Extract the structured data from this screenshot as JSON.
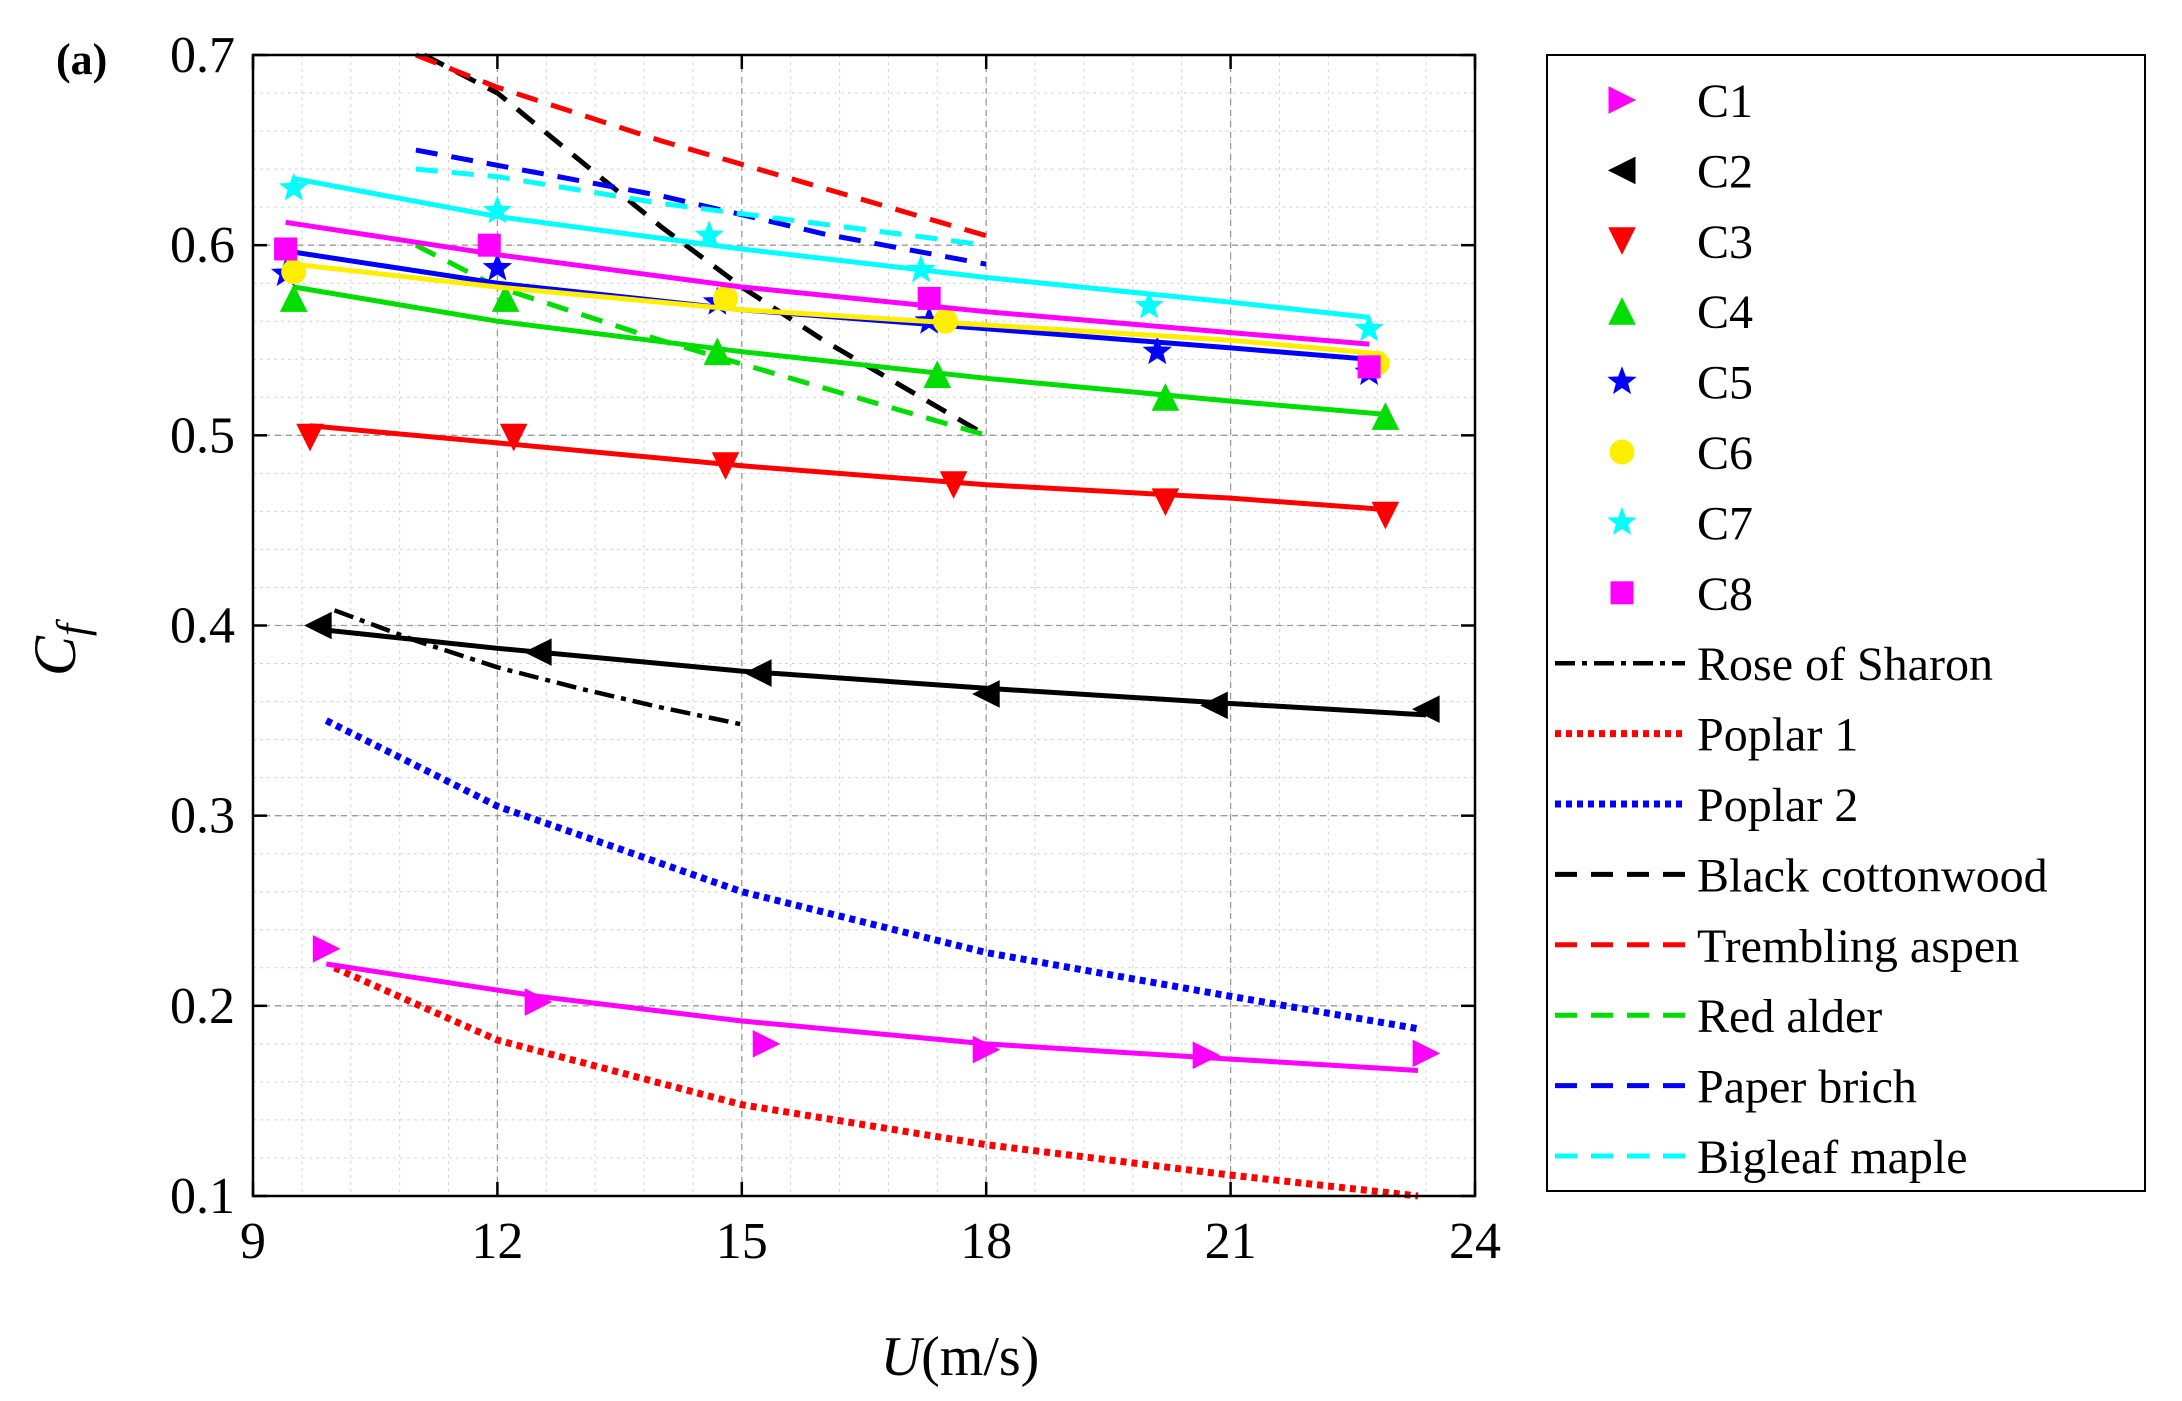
{
  "chart_data": {
    "type": "line",
    "panel_label": "(a)",
    "xlabel_italic": "U",
    "xlabel_unit": "(m/s)",
    "ylabel_main": "C",
    "ylabel_sub": "f",
    "xlim": [
      9,
      24
    ],
    "ylim": [
      0.1,
      0.7
    ],
    "xticks": [
      9,
      12,
      15,
      18,
      21,
      24
    ],
    "yticks": [
      0.1,
      0.2,
      0.3,
      0.4,
      0.5,
      0.6,
      0.7
    ],
    "xtick_labels": [
      "9",
      "12",
      "15",
      "18",
      "21",
      "24"
    ],
    "ytick_labels": [
      "0.1",
      "0.2",
      "0.3",
      "0.4",
      "0.5",
      "0.6",
      "0.7"
    ],
    "grid": true,
    "minor_grid": true,
    "legend_position": "outside-right",
    "series": [
      {
        "name": "C1",
        "color": "#ff00ff",
        "marker": "triangle-right",
        "points": [
          [
            9.9,
            0.23
          ],
          [
            12.5,
            0.202
          ],
          [
            15.3,
            0.18
          ],
          [
            18.0,
            0.177
          ],
          [
            20.7,
            0.174
          ],
          [
            23.4,
            0.175
          ]
        ],
        "fit": [
          [
            9.9,
            0.222
          ],
          [
            12.5,
            0.205
          ],
          [
            15.0,
            0.192
          ],
          [
            18.0,
            0.18
          ],
          [
            21.0,
            0.172
          ],
          [
            23.3,
            0.166
          ]
        ]
      },
      {
        "name": "C2",
        "color": "#000000",
        "marker": "triangle-left",
        "points": [
          [
            9.8,
            0.4
          ],
          [
            12.5,
            0.386
          ],
          [
            15.2,
            0.375
          ],
          [
            18.0,
            0.364
          ],
          [
            20.8,
            0.358
          ],
          [
            23.4,
            0.356
          ]
        ],
        "fit": [
          [
            9.8,
            0.398
          ],
          [
            12.0,
            0.388
          ],
          [
            15.0,
            0.376
          ],
          [
            18.0,
            0.367
          ],
          [
            21.0,
            0.359
          ],
          [
            23.4,
            0.353
          ]
        ]
      },
      {
        "name": "C3",
        "color": "#ff0000",
        "marker": "triangle-down",
        "points": [
          [
            9.7,
            0.499
          ],
          [
            12.2,
            0.499
          ],
          [
            14.8,
            0.484
          ],
          [
            17.6,
            0.474
          ],
          [
            20.2,
            0.465
          ],
          [
            22.9,
            0.458
          ]
        ],
        "fit": [
          [
            9.7,
            0.505
          ],
          [
            12.0,
            0.496
          ],
          [
            15.0,
            0.484
          ],
          [
            18.0,
            0.474
          ],
          [
            21.0,
            0.467
          ],
          [
            22.9,
            0.461
          ]
        ]
      },
      {
        "name": "C4",
        "color": "#00dd00",
        "marker": "triangle-up",
        "points": [
          [
            9.5,
            0.572
          ],
          [
            12.1,
            0.572
          ],
          [
            14.7,
            0.544
          ],
          [
            17.4,
            0.532
          ],
          [
            20.2,
            0.52
          ],
          [
            22.9,
            0.51
          ]
        ],
        "fit": [
          [
            9.5,
            0.578
          ],
          [
            12.0,
            0.56
          ],
          [
            15.0,
            0.544
          ],
          [
            18.0,
            0.53
          ],
          [
            21.0,
            0.518
          ],
          [
            22.9,
            0.511
          ]
        ]
      },
      {
        "name": "C5",
        "color": "#0000ff",
        "marker": "star",
        "points": [
          [
            9.4,
            0.585
          ],
          [
            12.0,
            0.588
          ],
          [
            14.7,
            0.57
          ],
          [
            17.3,
            0.56
          ],
          [
            20.1,
            0.544
          ],
          [
            22.7,
            0.533
          ]
        ],
        "fit": [
          [
            9.4,
            0.597
          ],
          [
            12.0,
            0.58
          ],
          [
            15.0,
            0.566
          ],
          [
            18.0,
            0.556
          ],
          [
            21.0,
            0.546
          ],
          [
            22.7,
            0.54
          ]
        ]
      },
      {
        "name": "C6",
        "color": "#ffee00",
        "marker": "circle",
        "points": [
          [
            9.5,
            0.586
          ],
          [
            14.8,
            0.572
          ],
          [
            17.5,
            0.56
          ],
          [
            22.8,
            0.538
          ]
        ],
        "fit": [
          [
            9.5,
            0.59
          ],
          [
            12.0,
            0.578
          ],
          [
            15.0,
            0.566
          ],
          [
            18.0,
            0.558
          ],
          [
            21.0,
            0.55
          ],
          [
            22.8,
            0.543
          ]
        ]
      },
      {
        "name": "C7",
        "color": "#00ffff",
        "marker": "star",
        "points": [
          [
            9.5,
            0.63
          ],
          [
            12.0,
            0.618
          ],
          [
            14.6,
            0.605
          ],
          [
            17.2,
            0.587
          ],
          [
            20.0,
            0.568
          ],
          [
            22.7,
            0.556
          ]
        ],
        "fit": [
          [
            9.5,
            0.635
          ],
          [
            12.0,
            0.615
          ],
          [
            15.0,
            0.598
          ],
          [
            18.0,
            0.583
          ],
          [
            21.0,
            0.57
          ],
          [
            22.7,
            0.562
          ]
        ]
      },
      {
        "name": "C8",
        "color": "#ff00ff",
        "marker": "square",
        "points": [
          [
            9.4,
            0.598
          ],
          [
            11.9,
            0.6
          ],
          [
            17.3,
            0.572
          ],
          [
            22.7,
            0.536
          ]
        ],
        "fit": [
          [
            9.4,
            0.612
          ],
          [
            12.0,
            0.595
          ],
          [
            15.0,
            0.578
          ],
          [
            18.0,
            0.565
          ],
          [
            21.0,
            0.554
          ],
          [
            22.7,
            0.548
          ]
        ]
      },
      {
        "name": "Rose of Sharon",
        "color": "#000000",
        "dash": "dashdot",
        "fit": [
          [
            10.0,
            0.408
          ],
          [
            11.0,
            0.392
          ],
          [
            12.0,
            0.378
          ],
          [
            13.0,
            0.367
          ],
          [
            14.0,
            0.357
          ],
          [
            15.0,
            0.348
          ]
        ]
      },
      {
        "name": "Poplar 1",
        "color": "#ff0000",
        "dash": "dotted",
        "fit": [
          [
            10.0,
            0.22
          ],
          [
            12.0,
            0.182
          ],
          [
            15.0,
            0.148
          ],
          [
            18.0,
            0.127
          ],
          [
            21.0,
            0.111
          ],
          [
            23.3,
            0.1
          ]
        ]
      },
      {
        "name": "Poplar 2",
        "color": "#0000ff",
        "dash": "dotted",
        "fit": [
          [
            9.9,
            0.35
          ],
          [
            12.0,
            0.305
          ],
          [
            15.0,
            0.26
          ],
          [
            18.0,
            0.228
          ],
          [
            21.0,
            0.205
          ],
          [
            23.3,
            0.188
          ]
        ]
      },
      {
        "name": "Black cottonwood",
        "color": "#000000",
        "dash": "dashed",
        "fit": [
          [
            11.1,
            0.7
          ],
          [
            12.0,
            0.68
          ],
          [
            13.0,
            0.645
          ],
          [
            14.0,
            0.61
          ],
          [
            15.0,
            0.578
          ],
          [
            16.0,
            0.55
          ],
          [
            17.0,
            0.525
          ],
          [
            18.0,
            0.5
          ]
        ]
      },
      {
        "name": "Trembling aspen",
        "color": "#ff0000",
        "dash": "dashed",
        "fit": [
          [
            11.0,
            0.7
          ],
          [
            12.0,
            0.683
          ],
          [
            14.0,
            0.655
          ],
          [
            16.0,
            0.63
          ],
          [
            18.0,
            0.605
          ]
        ]
      },
      {
        "name": "Red alder",
        "color": "#00dd00",
        "dash": "dashed",
        "fit": [
          [
            11.0,
            0.6
          ],
          [
            12.0,
            0.578
          ],
          [
            14.0,
            0.55
          ],
          [
            16.0,
            0.525
          ],
          [
            18.0,
            0.5
          ]
        ]
      },
      {
        "name": "Paper brich",
        "color": "#0000ff",
        "dash": "dashed",
        "fit": [
          [
            11.0,
            0.65
          ],
          [
            12.0,
            0.642
          ],
          [
            14.0,
            0.626
          ],
          [
            16.0,
            0.606
          ],
          [
            18.0,
            0.59
          ]
        ]
      },
      {
        "name": "Bigleaf maple",
        "color": "#00ffff",
        "dash": "dashed",
        "fit": [
          [
            11.0,
            0.64
          ],
          [
            12.0,
            0.636
          ],
          [
            14.0,
            0.622
          ],
          [
            16.0,
            0.611
          ],
          [
            18.0,
            0.6
          ]
        ]
      }
    ]
  }
}
